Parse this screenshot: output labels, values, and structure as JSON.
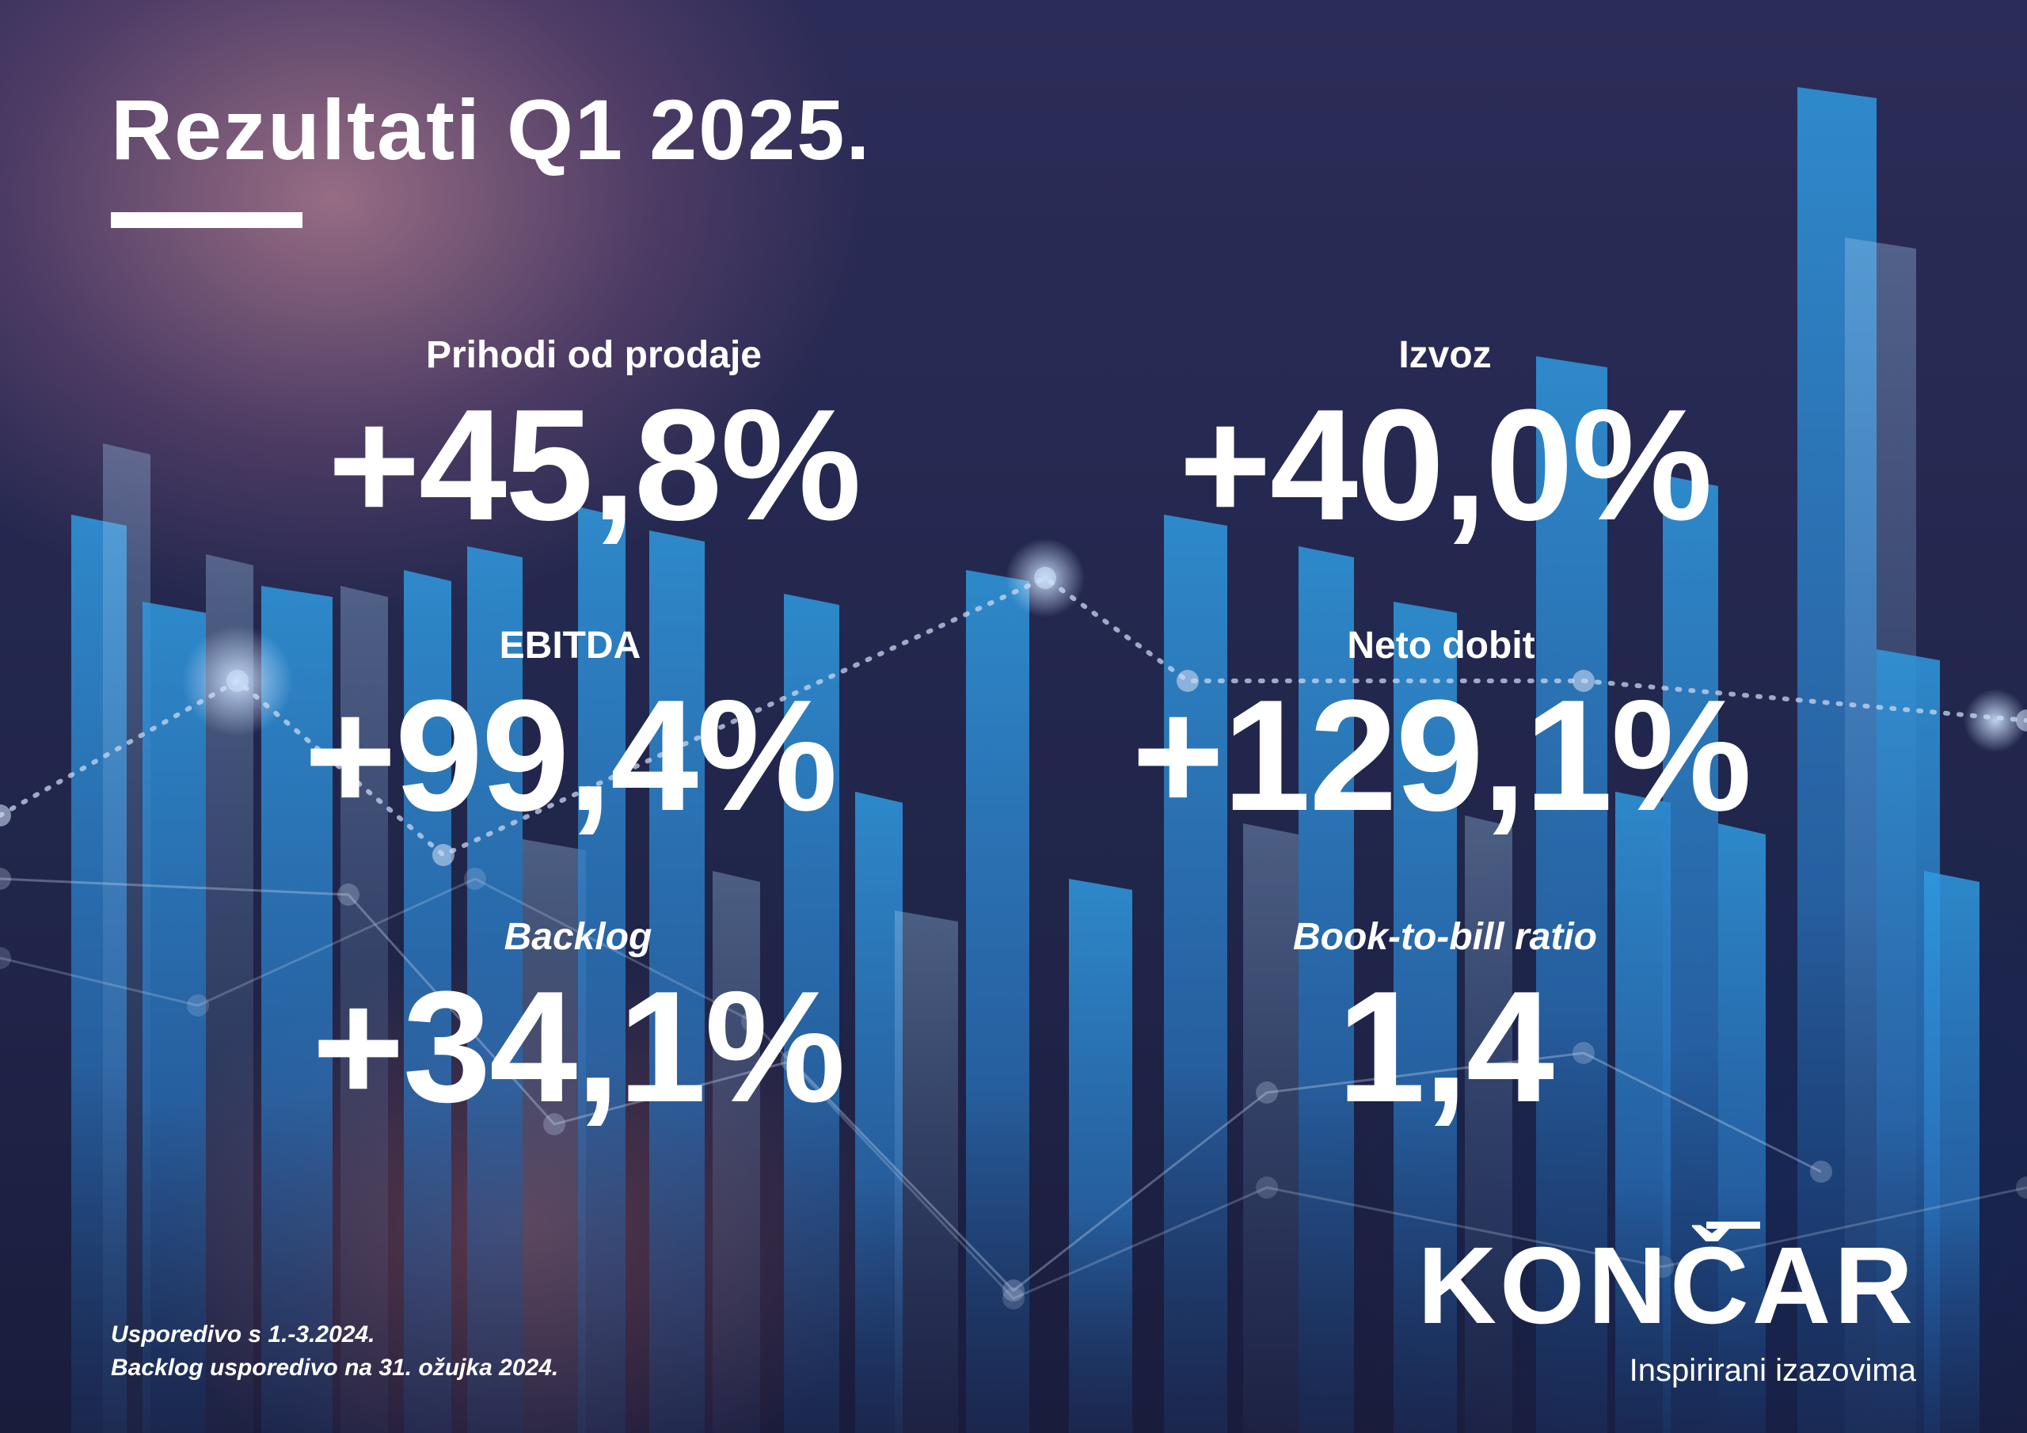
{
  "title": "Rezultati Q1 2025.",
  "metrics": [
    {
      "label": "Prihodi od prodaje",
      "value": "+45,8%"
    },
    {
      "label": "Izvoz",
      "value": "+40,0%"
    },
    {
      "label": "EBITDA",
      "value": "+99,4%"
    },
    {
      "label": "Neto dobit",
      "value": "+129,1%"
    },
    {
      "label": "Backlog",
      "value": "+34,1%"
    },
    {
      "label": "Book-to-bill ratio",
      "value": "1,4"
    }
  ],
  "footnote": {
    "line1": "Usporedivo s 1.-3.2024.",
    "line2": "Backlog usporedivo na 31. ožujka 2024."
  },
  "brand": {
    "name": "KONČAR",
    "tagline": "Inspirirani izazovima"
  },
  "colors": {
    "text": "#ffffff",
    "bar_blue": "#2b8fd6",
    "background_navy": "#1f2448"
  }
}
